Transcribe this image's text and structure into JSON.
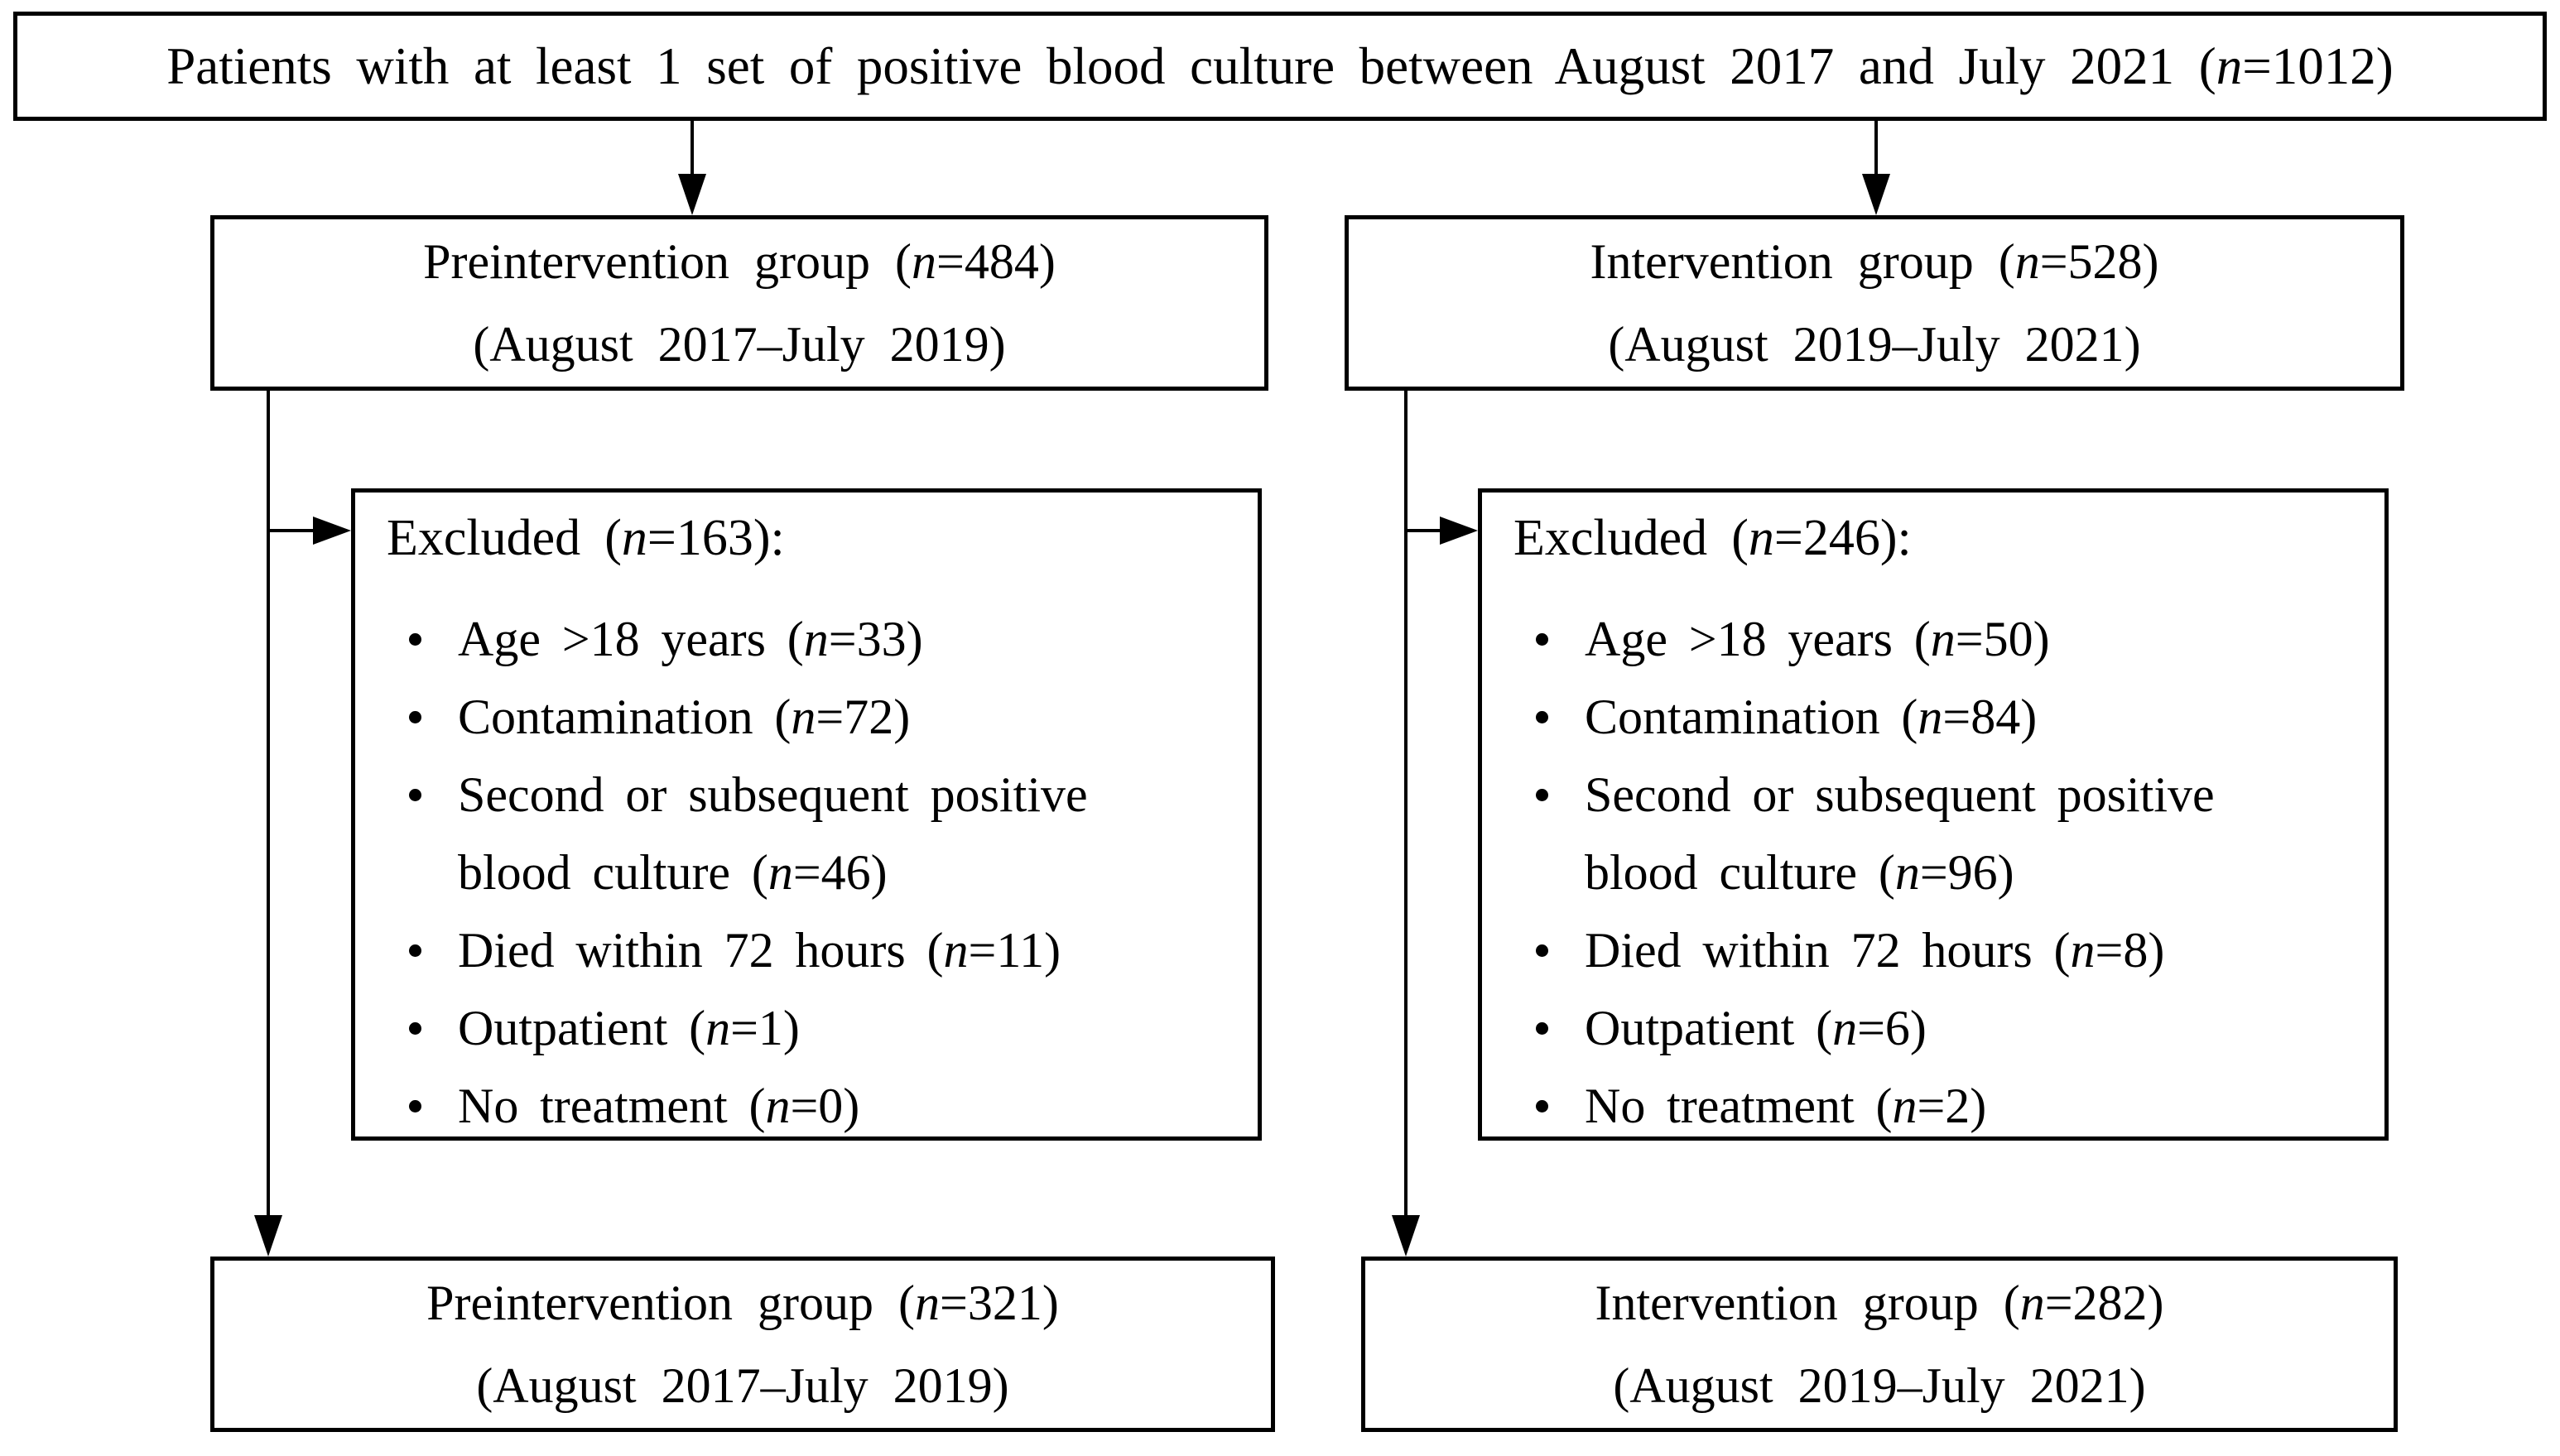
{
  "figure": {
    "top_box": "Patients with at least 1 set of positive blood culture between August 2017 and July 2021 (*n*=1012)",
    "left": {
      "group_box": "Preintervention group (*n*=484)\n(August 2017–July 2019)",
      "excluded": {
        "heading": "Excluded (*n*=163):",
        "items": [
          "Age >18 years (*n*=33)",
          "Contamination (*n*=72)",
          "Second or subsequent positive\nblood culture (*n*=46)",
          "Died within 72 hours (*n*=11)",
          "Outpatient (*n*=1)",
          "No treatment (*n*=0)"
        ]
      },
      "final_box": "Preintervention group (*n*=321)\n(August 2017–July 2019)"
    },
    "right": {
      "group_box": "Intervention group (*n*=528)\n(August 2019–July 2021)",
      "excluded": {
        "heading": "Excluded (*n*=246):",
        "items": [
          "Age >18 years (*n*=50)",
          "Contamination (*n*=84)",
          "Second or subsequent positive\nblood culture (*n*=96)",
          "Died within 72 hours (*n*=8)",
          "Outpatient (*n*=6)",
          "No treatment (*n*=2)"
        ]
      },
      "final_box": "Intervention group (*n*=282)\n(August 2019–July 2021)"
    }
  },
  "colors": {
    "line": "#000000",
    "text": "#000000",
    "background": "#ffffff"
  }
}
